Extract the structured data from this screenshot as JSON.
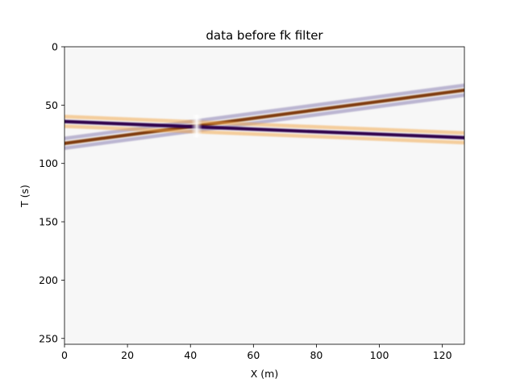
{
  "chart_data": {
    "type": "heatmap",
    "title": "data before fk filter",
    "xlabel": "X (m)",
    "ylabel": "T (s)",
    "xlim": [
      0,
      127
    ],
    "ylim": [
      255,
      0
    ],
    "y_inverted": true,
    "xticks": [
      0,
      20,
      40,
      60,
      80,
      100,
      120
    ],
    "yticks": [
      0,
      50,
      100,
      150,
      200,
      250
    ],
    "grid": false,
    "colormap": "PuOr",
    "background_value_color": "#f7f7f7",
    "events": [
      {
        "name": "rising event",
        "x": [
          0,
          127
        ],
        "t": [
          83,
          37
        ],
        "center_color": "#7f3b08",
        "side_color": "#8073ac"
      },
      {
        "name": "falling event",
        "x": [
          0,
          127
        ],
        "t": [
          64,
          78
        ],
        "center_color": "#2d004b",
        "side_color": "#f1a340"
      }
    ],
    "crossing": {
      "x": 42,
      "t": 68
    }
  }
}
